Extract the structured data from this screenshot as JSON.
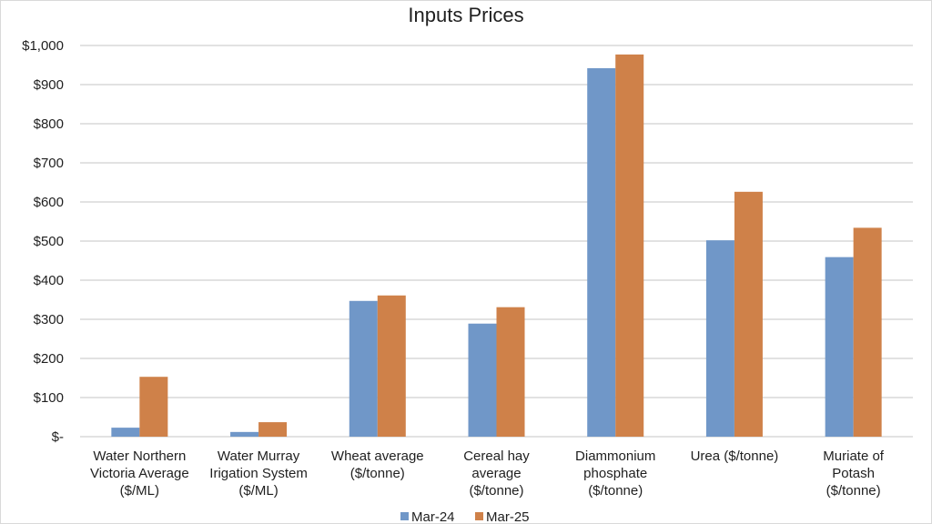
{
  "chart_data": {
    "type": "bar",
    "title": "Inputs Prices",
    "categories": [
      [
        "Water Northern",
        "Victoria Average",
        "($/ML)"
      ],
      [
        "Water Murray",
        "Irigation System",
        "($/ML)"
      ],
      [
        "Wheat average",
        "($/tonne)"
      ],
      [
        "Cereal hay",
        "average",
        "($/tonne)"
      ],
      [
        "Diammonium",
        "phosphate",
        "($/tonne)"
      ],
      [
        "Urea ($/tonne)"
      ],
      [
        "Muriate of",
        "Potash",
        "($/tonne)"
      ]
    ],
    "series": [
      {
        "name": "Mar-24",
        "color": "#7097c8",
        "values": [
          23,
          12,
          347,
          289,
          942,
          502,
          459
        ]
      },
      {
        "name": "Mar-25",
        "color": "#cf8149",
        "values": [
          153,
          37,
          361,
          331,
          977,
          626,
          534
        ]
      }
    ],
    "ylim": [
      0,
      1000
    ],
    "yticks": [
      0,
      100,
      200,
      300,
      400,
      500,
      600,
      700,
      800,
      900,
      1000
    ],
    "ytick_labels": [
      "$-",
      "$100",
      "$200",
      "$300",
      "$400",
      "$500",
      "$600",
      "$700",
      "$800",
      "$900",
      "$1,000"
    ],
    "grid": true,
    "legend_position": "bottom"
  }
}
